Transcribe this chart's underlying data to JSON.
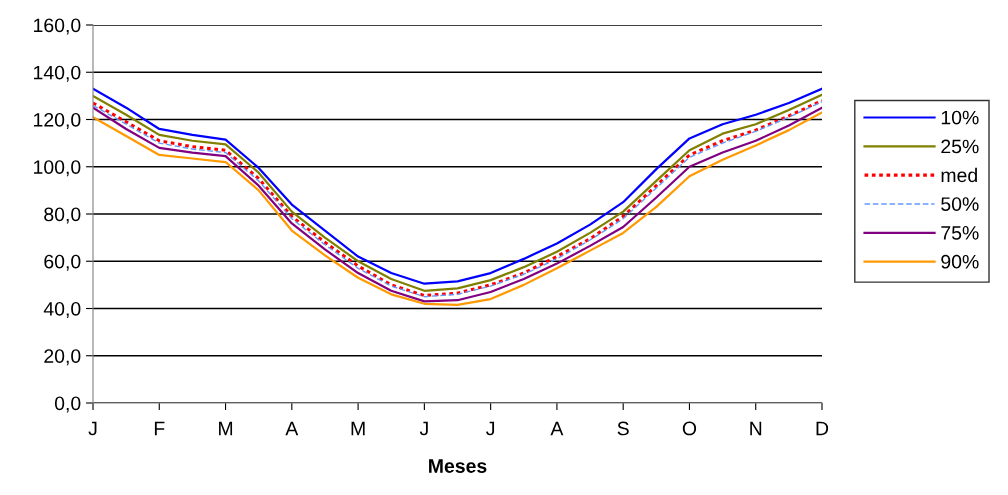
{
  "chart_data": {
    "type": "line",
    "xlabel": "Meses",
    "categories": [
      "J",
      null,
      "F",
      null,
      "M",
      null,
      "A",
      null,
      "M",
      null,
      "J",
      null,
      "J",
      null,
      "A",
      null,
      "S",
      null,
      "O",
      null,
      "N",
      null,
      "D"
    ],
    "ylim": [
      0,
      160
    ],
    "yticks": [
      {
        "value": 0,
        "label": "0,0"
      },
      {
        "value": 20,
        "label": "20,0"
      },
      {
        "value": 40,
        "label": "40,0"
      },
      {
        "value": 60,
        "label": "60,0"
      },
      {
        "value": 80,
        "label": "80,0"
      },
      {
        "value": 100,
        "label": "100,0"
      },
      {
        "value": 120,
        "label": "120,0"
      },
      {
        "value": 140,
        "label": "140,0"
      },
      {
        "value": 160,
        "label": "160,0"
      }
    ],
    "grid": "y",
    "legend": "right",
    "marker": "none",
    "series": [
      {
        "name": "10%",
        "color": "#0000ff",
        "line_style": "solid",
        "values": [
          133,
          125,
          116,
          113.5,
          111.5,
          99.5,
          84,
          73,
          62,
          55,
          50.5,
          51.5,
          55,
          61,
          67.5,
          75.5,
          85,
          99,
          112,
          118,
          122,
          127,
          133
        ]
      },
      {
        "name": "25%",
        "color": "#808000",
        "line_style": "solid",
        "values": [
          130,
          122,
          113.5,
          111,
          109.5,
          97.5,
          81,
          70,
          60,
          52.5,
          47.5,
          48.5,
          52,
          57.5,
          64,
          72,
          81,
          94,
          107,
          114,
          118,
          124,
          130.5
        ]
      },
      {
        "name": "med",
        "color": "#ff0000",
        "line_style": "dotted",
        "values": [
          127,
          119,
          111,
          108.5,
          107,
          95,
          79,
          68,
          58,
          50,
          45.5,
          46.5,
          50,
          55,
          62,
          69.5,
          79,
          92,
          105,
          111,
          115.5,
          121.5,
          128
        ]
      },
      {
        "name": "50%",
        "color": "#6699ff",
        "line_style": "dashed",
        "values": [
          126,
          118,
          110,
          107.5,
          106,
          94,
          78,
          67,
          57,
          49.5,
          45,
          46,
          49.5,
          54.5,
          61,
          69,
          78,
          91,
          104,
          110,
          115,
          121,
          127.5
        ]
      },
      {
        "name": "75%",
        "color": "#800080",
        "line_style": "solid",
        "values": [
          125,
          116,
          108,
          106,
          104.5,
          92,
          76,
          65,
          55,
          47.5,
          43,
          43.5,
          47,
          52.5,
          59,
          66.5,
          74.5,
          87,
          100,
          106,
          111,
          117.5,
          125
        ]
      },
      {
        "name": "90%",
        "color": "#ff9900",
        "line_style": "solid",
        "values": [
          121,
          113,
          105,
          103.5,
          102,
          90,
          73,
          62.5,
          53,
          46,
          42,
          41.5,
          44,
          50,
          57,
          64.5,
          72,
          83,
          96,
          103,
          109,
          115.5,
          123
        ]
      }
    ]
  }
}
